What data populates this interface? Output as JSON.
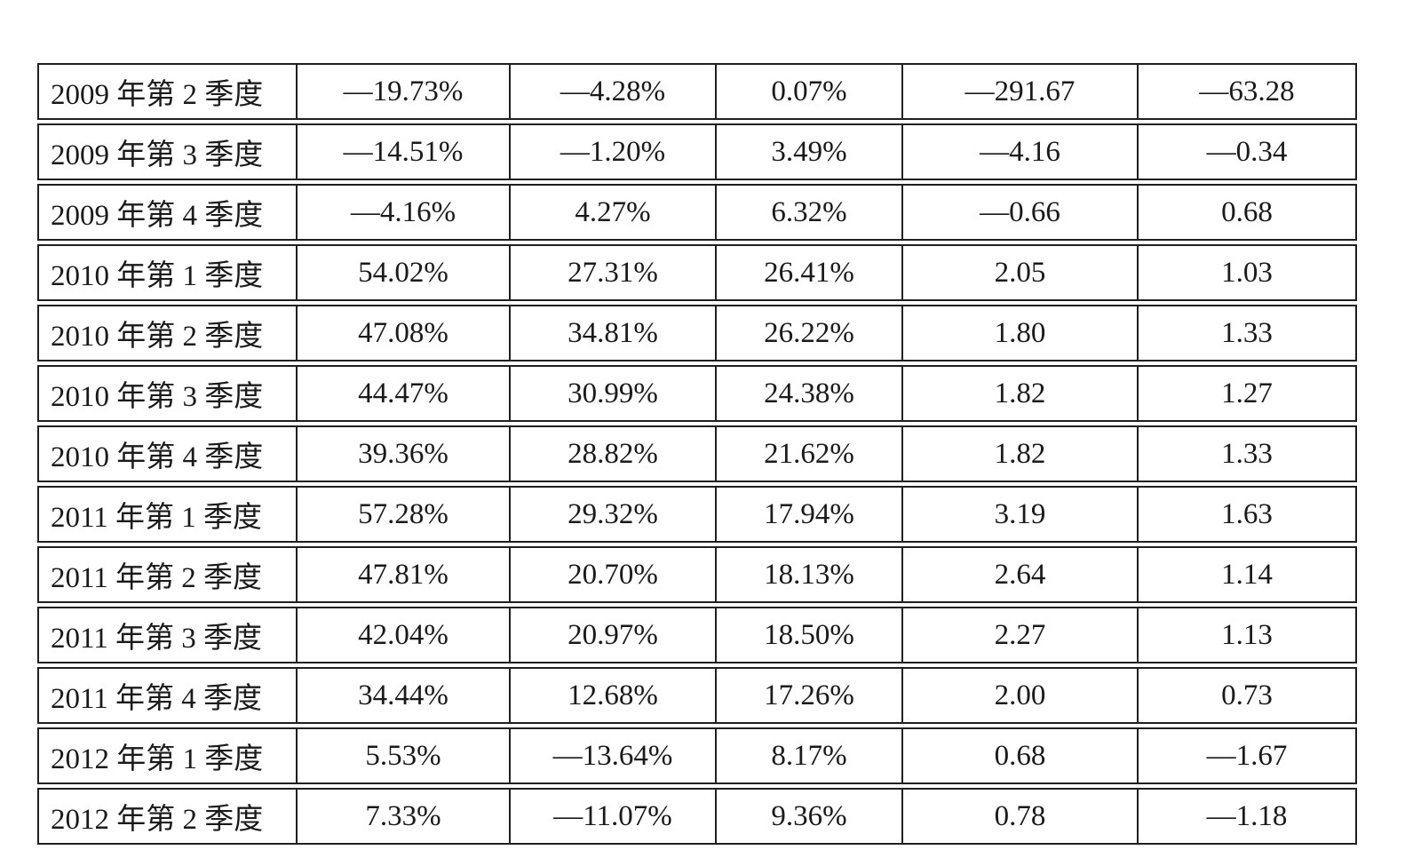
{
  "colors": {
    "background": "#ffffff",
    "border": "#1f1f1f",
    "text": "#1a1a1a"
  },
  "table": {
    "rows": [
      {
        "cells": [
          "2009 年第 2 季度",
          "—19.73%",
          "—4.28%",
          "0.07%",
          "—291.67",
          "—63.28"
        ]
      },
      {
        "cells": [
          "2009 年第 3 季度",
          "—14.51%",
          "—1.20%",
          "3.49%",
          "—4.16",
          "—0.34"
        ]
      },
      {
        "cells": [
          "2009 年第 4 季度",
          "—4.16%",
          "4.27%",
          "6.32%",
          "—0.66",
          "0.68"
        ]
      },
      {
        "cells": [
          "2010 年第 1 季度",
          "54.02%",
          "27.31%",
          "26.41%",
          "2.05",
          "1.03"
        ]
      },
      {
        "cells": [
          "2010 年第 2 季度",
          "47.08%",
          "34.81%",
          "26.22%",
          "1.80",
          "1.33"
        ]
      },
      {
        "cells": [
          "2010 年第 3 季度",
          "44.47%",
          "30.99%",
          "24.38%",
          "1.82",
          "1.27"
        ]
      },
      {
        "cells": [
          "2010 年第 4 季度",
          "39.36%",
          "28.82%",
          "21.62%",
          "1.82",
          "1.33"
        ]
      },
      {
        "cells": [
          "2011 年第 1 季度",
          "57.28%",
          "29.32%",
          "17.94%",
          "3.19",
          "1.63"
        ]
      },
      {
        "cells": [
          "2011 年第 2 季度",
          "47.81%",
          "20.70%",
          "18.13%",
          "2.64",
          "1.14"
        ]
      },
      {
        "cells": [
          "2011 年第 3 季度",
          "42.04%",
          "20.97%",
          "18.50%",
          "2.27",
          "1.13"
        ]
      },
      {
        "cells": [
          "2011 年第 4 季度",
          "34.44%",
          "12.68%",
          "17.26%",
          "2.00",
          "0.73"
        ]
      },
      {
        "cells": [
          "2012 年第 1 季度",
          "5.53%",
          "—13.64%",
          "8.17%",
          "0.68",
          "—1.67"
        ]
      },
      {
        "cells": [
          "2012 年第 2 季度",
          "7.33%",
          "—11.07%",
          "9.36%",
          "0.78",
          "—1.18"
        ]
      }
    ]
  },
  "chart_data": {
    "type": "table",
    "row_labels": [
      "2009 年第 2 季度",
      "2009 年第 3 季度",
      "2009 年第 4 季度",
      "2010 年第 1 季度",
      "2010 年第 2 季度",
      "2010 年第 3 季度",
      "2010 年第 4 季度",
      "2011 年第 1 季度",
      "2011 年第 2 季度",
      "2011 年第 3 季度",
      "2011 年第 4 季度",
      "2012 年第 1 季度",
      "2012 年第 2 季度"
    ],
    "series": [
      {
        "name": "column-2-percent",
        "values": [
          -19.73,
          -14.51,
          -4.16,
          54.02,
          47.08,
          44.47,
          39.36,
          57.28,
          47.81,
          42.04,
          34.44,
          5.53,
          7.33
        ]
      },
      {
        "name": "column-3-percent",
        "values": [
          -4.28,
          -1.2,
          4.27,
          27.31,
          34.81,
          30.99,
          28.82,
          29.32,
          20.7,
          20.97,
          12.68,
          -13.64,
          -11.07
        ]
      },
      {
        "name": "column-4-percent",
        "values": [
          0.07,
          3.49,
          6.32,
          26.41,
          26.22,
          24.38,
          21.62,
          17.94,
          18.13,
          18.5,
          17.26,
          8.17,
          9.36
        ]
      },
      {
        "name": "column-5-ratio",
        "values": [
          -291.67,
          -4.16,
          -0.66,
          2.05,
          1.8,
          1.82,
          1.82,
          3.19,
          2.64,
          2.27,
          2.0,
          0.68,
          0.78
        ]
      },
      {
        "name": "column-6-ratio",
        "values": [
          -63.28,
          -0.34,
          0.68,
          1.03,
          1.33,
          1.27,
          1.33,
          1.63,
          1.14,
          1.13,
          0.73,
          -1.67,
          -1.18
        ]
      }
    ]
  }
}
